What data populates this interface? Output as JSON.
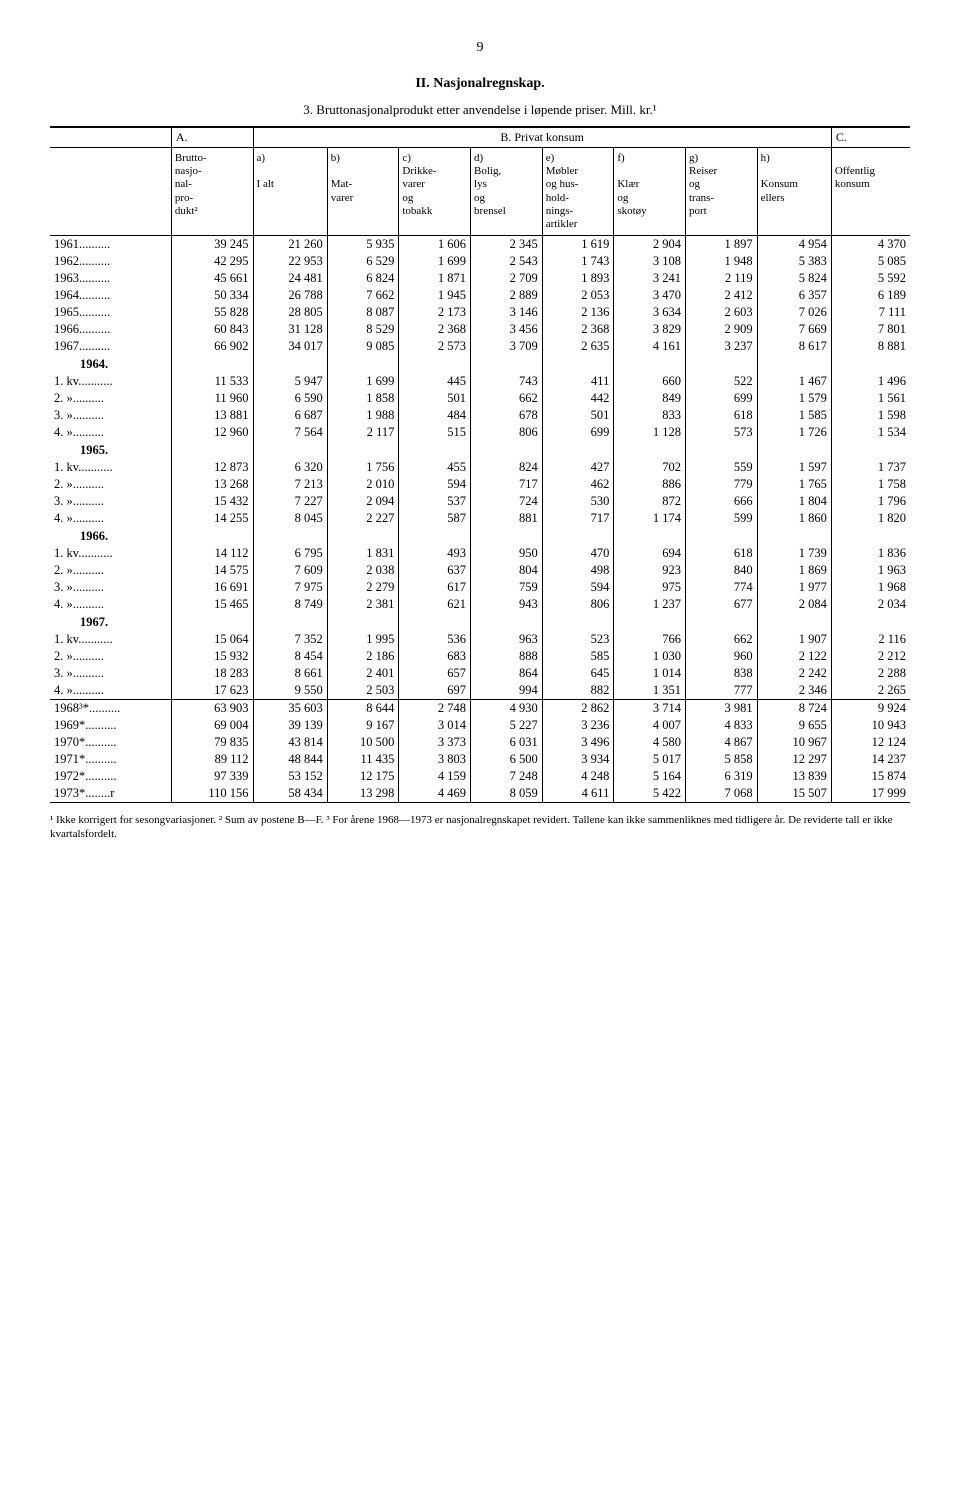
{
  "page_number": "9",
  "title": "II. Nasjonalregnskap.",
  "subtitle": "3. Bruttonasjonalprodukt etter anvendelse i løpende priser. Mill. kr.¹",
  "columns": {
    "A": "A.",
    "B_header": "B. Privat konsum",
    "C": "C.",
    "row_label": "Bruttonasjonalprodukt²",
    "a": "a)\nI alt",
    "b": "b)\nMat-\nvarer",
    "c": "c)\nDrikke-\nvarer\nog\ntobakk",
    "d": "d)\nBolig,\nlys\nog\nbrensel",
    "e": "e)\nMøbler\nog hus-\nhold-\nnings-\nartikler",
    "f": "f)\nKlær\nog\nskotøy",
    "g": "g)\nReiser\nog\ntrans-\nport",
    "h": "h)\nKonsum\nellers",
    "C_full": "Offentlig\nkonsum"
  },
  "years_block": [
    {
      "label": "1961",
      "A": "39 245",
      "a": "21 260",
      "b": "5 935",
      "c": "1 606",
      "d": "2 345",
      "e": "1 619",
      "f": "2 904",
      "g": "1 897",
      "h": "4 954",
      "C": "4 370"
    },
    {
      "label": "1962",
      "A": "42 295",
      "a": "22 953",
      "b": "6 529",
      "c": "1 699",
      "d": "2 543",
      "e": "1 743",
      "f": "3 108",
      "g": "1 948",
      "h": "5 383",
      "C": "5 085"
    },
    {
      "label": "1963",
      "A": "45 661",
      "a": "24 481",
      "b": "6 824",
      "c": "1 871",
      "d": "2 709",
      "e": "1 893",
      "f": "3 241",
      "g": "2 119",
      "h": "5 824",
      "C": "5 592"
    },
    {
      "label": "1964",
      "A": "50 334",
      "a": "26 788",
      "b": "7 662",
      "c": "1 945",
      "d": "2 889",
      "e": "2 053",
      "f": "3 470",
      "g": "2 412",
      "h": "6 357",
      "C": "6 189"
    },
    {
      "label": "1965",
      "A": "55 828",
      "a": "28 805",
      "b": "8 087",
      "c": "2 173",
      "d": "3 146",
      "e": "2 136",
      "f": "3 634",
      "g": "2 603",
      "h": "7 026",
      "C": "7 111"
    },
    {
      "label": "1966",
      "A": "60 843",
      "a": "31 128",
      "b": "8 529",
      "c": "2 368",
      "d": "3 456",
      "e": "2 368",
      "f": "3 829",
      "g": "2 909",
      "h": "7 669",
      "C": "7 801"
    },
    {
      "label": "1967",
      "A": "66 902",
      "a": "34 017",
      "b": "9 085",
      "c": "2 573",
      "d": "3 709",
      "e": "2 635",
      "f": "4 161",
      "g": "3 237",
      "h": "8 617",
      "C": "8 881"
    }
  ],
  "q1964_header": "1964.",
  "q1964": [
    {
      "label": "1. kv.",
      "A": "11 533",
      "a": "5 947",
      "b": "1 699",
      "c": "445",
      "d": "743",
      "e": "411",
      "f": "660",
      "g": "522",
      "h": "1 467",
      "C": "1 496"
    },
    {
      "label": "2. »",
      "A": "11 960",
      "a": "6 590",
      "b": "1 858",
      "c": "501",
      "d": "662",
      "e": "442",
      "f": "849",
      "g": "699",
      "h": "1 579",
      "C": "1 561"
    },
    {
      "label": "3. »",
      "A": "13 881",
      "a": "6 687",
      "b": "1 988",
      "c": "484",
      "d": "678",
      "e": "501",
      "f": "833",
      "g": "618",
      "h": "1 585",
      "C": "1 598"
    },
    {
      "label": "4. »",
      "A": "12 960",
      "a": "7 564",
      "b": "2 117",
      "c": "515",
      "d": "806",
      "e": "699",
      "f": "1 128",
      "g": "573",
      "h": "1 726",
      "C": "1 534"
    }
  ],
  "q1965_header": "1965.",
  "q1965": [
    {
      "label": "1. kv.",
      "A": "12 873",
      "a": "6 320",
      "b": "1 756",
      "c": "455",
      "d": "824",
      "e": "427",
      "f": "702",
      "g": "559",
      "h": "1 597",
      "C": "1 737"
    },
    {
      "label": "2. »",
      "A": "13 268",
      "a": "7 213",
      "b": "2 010",
      "c": "594",
      "d": "717",
      "e": "462",
      "f": "886",
      "g": "779",
      "h": "1 765",
      "C": "1 758"
    },
    {
      "label": "3. »",
      "A": "15 432",
      "a": "7 227",
      "b": "2 094",
      "c": "537",
      "d": "724",
      "e": "530",
      "f": "872",
      "g": "666",
      "h": "1 804",
      "C": "1 796"
    },
    {
      "label": "4. »",
      "A": "14 255",
      "a": "8 045",
      "b": "2 227",
      "c": "587",
      "d": "881",
      "e": "717",
      "f": "1 174",
      "g": "599",
      "h": "1 860",
      "C": "1 820"
    }
  ],
  "q1966_header": "1966.",
  "q1966": [
    {
      "label": "1. kv.",
      "A": "14 112",
      "a": "6 795",
      "b": "1 831",
      "c": "493",
      "d": "950",
      "e": "470",
      "f": "694",
      "g": "618",
      "h": "1 739",
      "C": "1 836"
    },
    {
      "label": "2. »",
      "A": "14 575",
      "a": "7 609",
      "b": "2 038",
      "c": "637",
      "d": "804",
      "e": "498",
      "f": "923",
      "g": "840",
      "h": "1 869",
      "C": "1 963"
    },
    {
      "label": "3. »",
      "A": "16 691",
      "a": "7 975",
      "b": "2 279",
      "c": "617",
      "d": "759",
      "e": "594",
      "f": "975",
      "g": "774",
      "h": "1 977",
      "C": "1 968"
    },
    {
      "label": "4. »",
      "A": "15 465",
      "a": "8 749",
      "b": "2 381",
      "c": "621",
      "d": "943",
      "e": "806",
      "f": "1 237",
      "g": "677",
      "h": "2 084",
      "C": "2 034"
    }
  ],
  "q1967_header": "1967.",
  "q1967": [
    {
      "label": "1. kv.",
      "A": "15 064",
      "a": "7 352",
      "b": "1 995",
      "c": "536",
      "d": "963",
      "e": "523",
      "f": "766",
      "g": "662",
      "h": "1 907",
      "C": "2 116"
    },
    {
      "label": "2. »",
      "A": "15 932",
      "a": "8 454",
      "b": "2 186",
      "c": "683",
      "d": "888",
      "e": "585",
      "f": "1 030",
      "g": "960",
      "h": "2 122",
      "C": "2 212"
    },
    {
      "label": "3. »",
      "A": "18 283",
      "a": "8 661",
      "b": "2 401",
      "c": "657",
      "d": "864",
      "e": "645",
      "f": "1 014",
      "g": "838",
      "h": "2 242",
      "C": "2 288"
    },
    {
      "label": "4. »",
      "A": "17 623",
      "a": "9 550",
      "b": "2 503",
      "c": "697",
      "d": "994",
      "e": "882",
      "f": "1 351",
      "g": "777",
      "h": "2 346",
      "C": "2 265"
    }
  ],
  "later_years": [
    {
      "label": "1968³*",
      "A": "63 903",
      "a": "35 603",
      "b": "8 644",
      "c": "2 748",
      "d": "4 930",
      "e": "2 862",
      "f": "3 714",
      "g": "3 981",
      "h": "8 724",
      "C": "9 924"
    },
    {
      "label": "1969*",
      "A": "69 004",
      "a": "39 139",
      "b": "9 167",
      "c": "3 014",
      "d": "5 227",
      "e": "3 236",
      "f": "4 007",
      "g": "4 833",
      "h": "9 655",
      "C": "10 943"
    },
    {
      "label": "1970*",
      "A": "79 835",
      "a": "43 814",
      "b": "10 500",
      "c": "3 373",
      "d": "6 031",
      "e": "3 496",
      "f": "4 580",
      "g": "4 867",
      "h": "10 967",
      "C": "12 124"
    },
    {
      "label": "1971*",
      "A": "89 112",
      "a": "48 844",
      "b": "11 435",
      "c": "3 803",
      "d": "6 500",
      "e": "3 934",
      "f": "5 017",
      "g": "5 858",
      "h": "12 297",
      "C": "14 237"
    },
    {
      "label": "1972*",
      "A": "97 339",
      "a": "53 152",
      "b": "12 175",
      "c": "4 159",
      "d": "7 248",
      "e": "4 248",
      "f": "5 164",
      "g": "6 319",
      "h": "13 839",
      "C": "15 874"
    },
    {
      "label": "1973*",
      "suffix": "r",
      "A": "110 156",
      "a": "58 434",
      "b": "13 298",
      "c": "4 469",
      "d": "8 059",
      "e": "4 611",
      "f": "5 422",
      "g": "7 068",
      "h": "15 507",
      "C": "17 999"
    }
  ],
  "footnote": "¹ Ikke korrigert for sesongvariasjoner. ² Sum av postene B—F. ³ For årene 1968—1973 er nasjonalregnskapet revidert. Tallene kan ikke sammenliknes med tidligere år. De reviderte tall er ikke kvartalsfordelt."
}
